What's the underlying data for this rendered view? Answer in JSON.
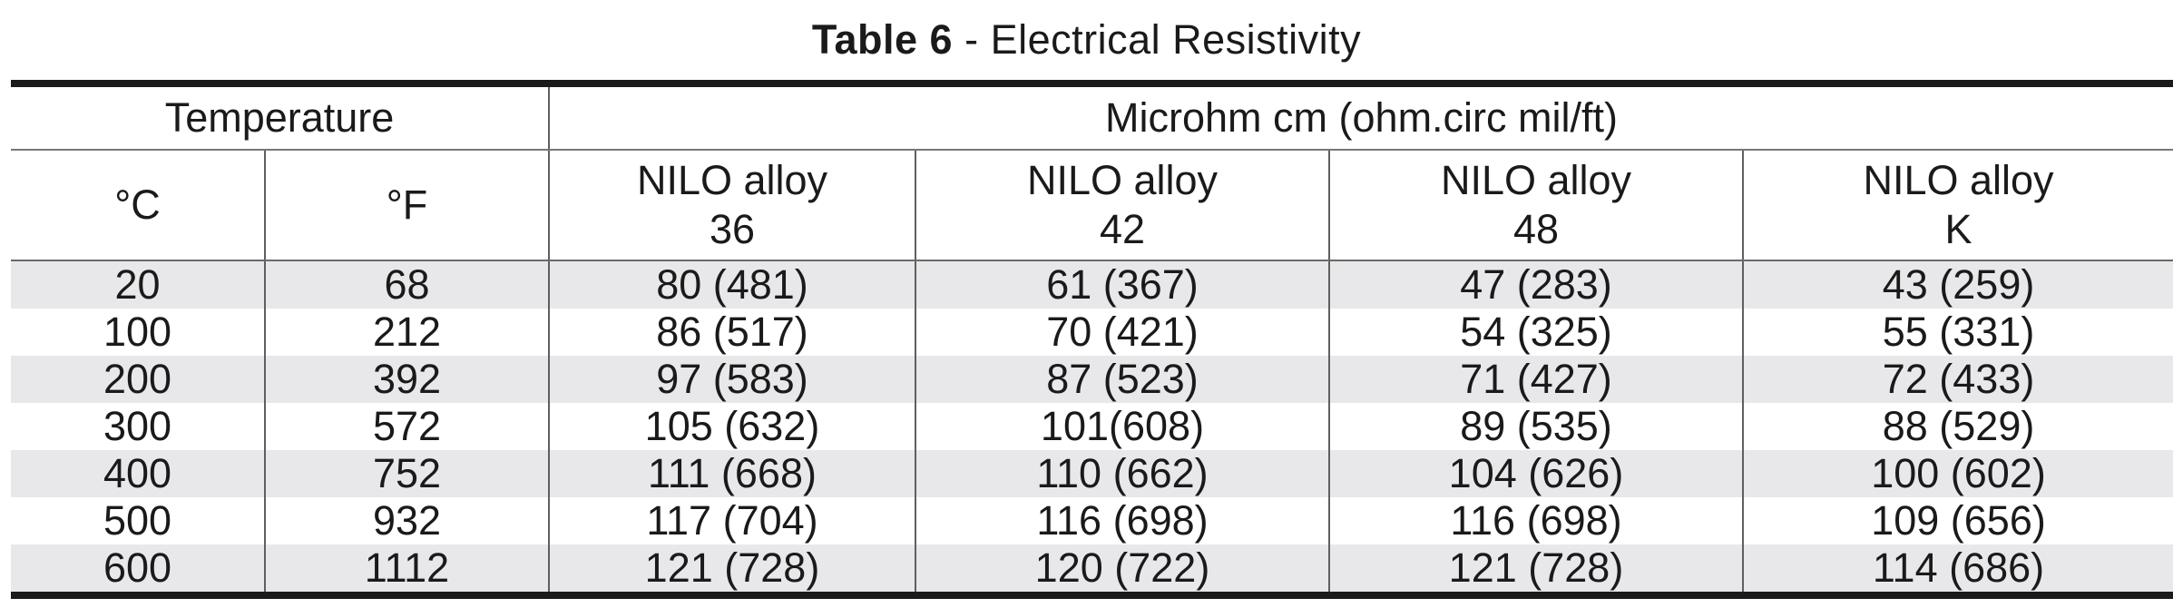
{
  "title": {
    "bold": "Table 6",
    "rest": " - Electrical Resistivity"
  },
  "table": {
    "group_headers": [
      {
        "label": "Temperature"
      },
      {
        "label": "Microhm cm (ohm.circ mil/ft)"
      }
    ],
    "columns": [
      {
        "label": "°C",
        "sub": ""
      },
      {
        "label": "°F",
        "sub": ""
      },
      {
        "label": "NILO alloy",
        "sub": "36"
      },
      {
        "label": "NILO alloy",
        "sub": "42"
      },
      {
        "label": "NILO alloy",
        "sub": "48"
      },
      {
        "label": "NILO alloy",
        "sub": "K"
      }
    ],
    "rows": [
      [
        "20",
        "68",
        "80 (481)",
        "61 (367)",
        "47 (283)",
        "43 (259)"
      ],
      [
        "100",
        "212",
        "86 (517)",
        "70 (421)",
        "54 (325)",
        "55 (331)"
      ],
      [
        "200",
        "392",
        "97 (583)",
        "87 (523)",
        "71 (427)",
        "72 (433)"
      ],
      [
        "300",
        "572",
        "105 (632)",
        "101(608)",
        "89 (535)",
        "88 (529)"
      ],
      [
        "400",
        "752",
        "111 (668)",
        "110 (662)",
        "104 (626)",
        "100 (602)"
      ],
      [
        "500",
        "932",
        "117 (704)",
        "116 (698)",
        "116 (698)",
        "109 (656)"
      ],
      [
        "600",
        "1112",
        "121 (728)",
        "120 (722)",
        "121 (728)",
        "114 (686)"
      ]
    ]
  },
  "colors": {
    "stripe": "#e8e8ea",
    "rule_thick": "#1b1b1b",
    "rule_thin": "#5f5f5f",
    "text": "#1a1a1a"
  }
}
